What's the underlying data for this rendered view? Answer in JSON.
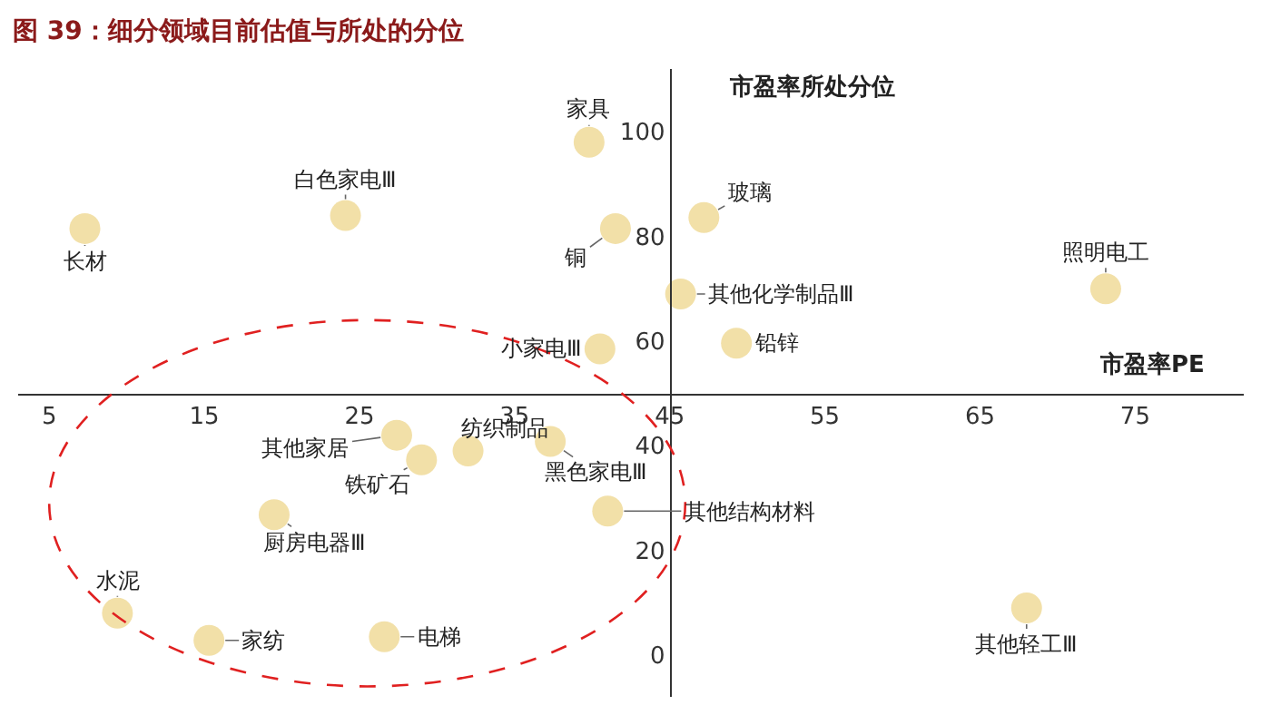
{
  "chart_data": {
    "type": "scatter",
    "title": "图 39：细分领域目前估值与所处的分位",
    "xlabel": "市盈率PE",
    "ylabel": "市盈率所处分位",
    "x": [
      7.3,
      24.1,
      39.8,
      41.5,
      47.2,
      45.7,
      73.1,
      40.5,
      49.3,
      27.4,
      29,
      32,
      37.3,
      41,
      19.5,
      9.4,
      15.3,
      26.6,
      68
    ],
    "series": [
      {
        "color": "#f2e0a8",
        "values": [
          81.5,
          84,
          98,
          81.5,
          83.6,
          69,
          70,
          58.5,
          59.6,
          42,
          37.3,
          39,
          40.8,
          27.5,
          26.8,
          8,
          2.8,
          3.5,
          9
        ]
      }
    ],
    "annotations": [
      {
        "text": "长材",
        "x": 7.3,
        "y": 81.5
      },
      {
        "text": "白色家电Ⅲ",
        "x": 24.1,
        "y": 84
      },
      {
        "text": "家具",
        "x": 39.8,
        "y": 98
      },
      {
        "text": "铜",
        "x": 41.5,
        "y": 81.5
      },
      {
        "text": "玻璃",
        "x": 47.2,
        "y": 83.6
      },
      {
        "text": "其他化学制品Ⅲ",
        "x": 45.7,
        "y": 69
      },
      {
        "text": "照明电工",
        "x": 73.1,
        "y": 70
      },
      {
        "text": "小家电Ⅲ",
        "x": 40.5,
        "y": 58.5
      },
      {
        "text": "铅锌",
        "x": 49.3,
        "y": 59.6
      },
      {
        "text": "其他家居",
        "x": 27.4,
        "y": 42
      },
      {
        "text": "铁矿石",
        "x": 29,
        "y": 37.3
      },
      {
        "text": "纺织制品",
        "x": 32,
        "y": 39
      },
      {
        "text": "黑色家电Ⅲ",
        "x": 37.3,
        "y": 40.8
      },
      {
        "text": "其他结构材料",
        "x": 41,
        "y": 27.5
      },
      {
        "text": "厨房电器Ⅲ",
        "x": 19.5,
        "y": 26.8
      },
      {
        "text": "水泥",
        "x": 9.4,
        "y": 8
      },
      {
        "text": "家纺",
        "x": 15.3,
        "y": 2.8
      },
      {
        "text": "电梯",
        "x": 26.6,
        "y": 3.5
      },
      {
        "text": "其他轻工Ⅲ",
        "x": 68,
        "y": 9
      }
    ],
    "xlim": [
      3,
      82
    ],
    "ylim": [
      -8,
      112
    ],
    "xticks": [
      5,
      15,
      25,
      35,
      45,
      55,
      65,
      75
    ],
    "yticks": [
      0,
      20,
      40,
      60,
      80,
      100
    ],
    "legend": false,
    "marker": "circle"
  }
}
